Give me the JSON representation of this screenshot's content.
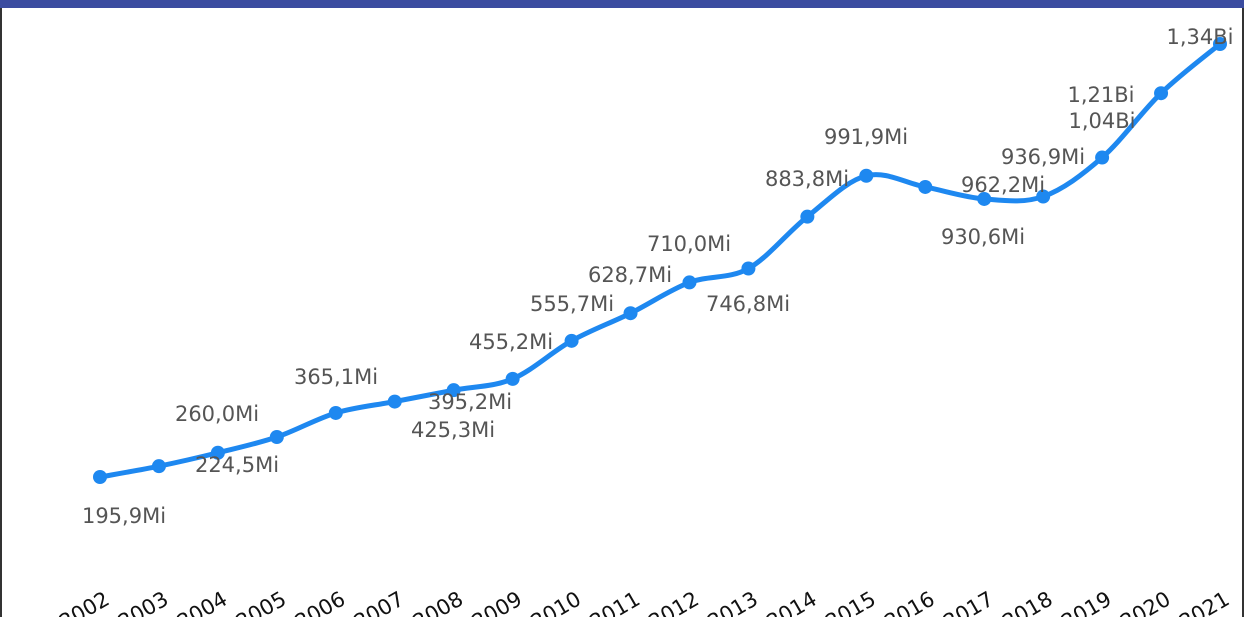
{
  "chart_data": {
    "type": "line",
    "categories": [
      "2002",
      "2003",
      "2004",
      "2005",
      "2006",
      "2007",
      "2008",
      "2009",
      "2010",
      "2011",
      "2012",
      "2013",
      "2014",
      "2015",
      "2016",
      "2017",
      "2018",
      "2019",
      "2020",
      "2021"
    ],
    "values": [
      195.9,
      224.5,
      260.0,
      301.6,
      365.1,
      395.2,
      425.3,
      455.2,
      555.7,
      628.7,
      710.0,
      746.8,
      883.8,
      991.9,
      962.2,
      930.6,
      936.9,
      1040,
      1210,
      1340
    ],
    "value_labels": [
      "195,9Mi",
      "224,5Mi",
      "260,0Mi",
      null,
      "365,1Mi",
      "395,2Mi",
      "425,3Mi",
      "455,2Mi",
      "555,7Mi",
      "628,7Mi",
      "710,0Mi",
      "746,8Mi",
      "883,8Mi",
      "991,9Mi",
      "962,2Mi",
      "930,6Mi",
      "936,9Mi",
      "1,04Bi",
      "1,21Bi",
      "1,34Bi"
    ],
    "color": "#1e88f0"
  }
}
